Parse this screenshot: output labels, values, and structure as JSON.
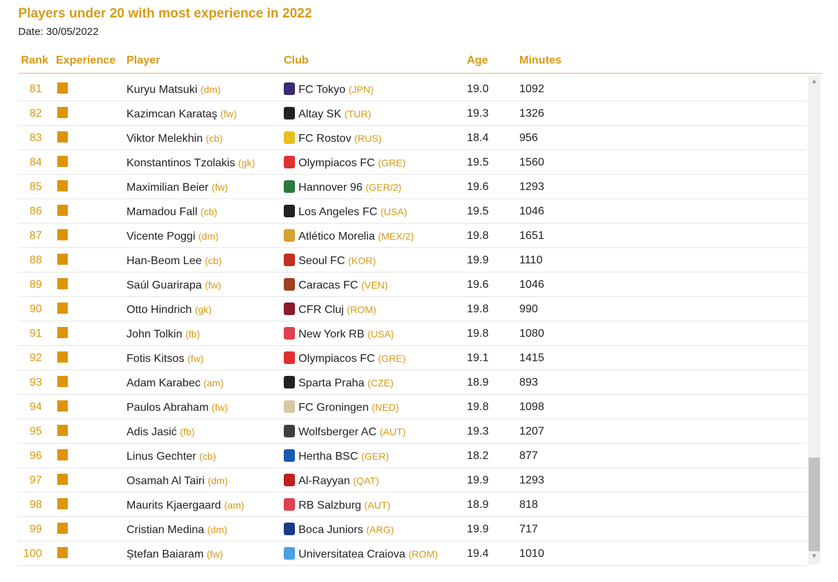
{
  "title": "Players under 20 with most experience in 2022",
  "date": "Date: 30/05/2022",
  "headers": {
    "rank": "Rank",
    "experience": "Experience",
    "player": "Player",
    "club": "Club",
    "age": "Age",
    "minutes": "Minutes"
  },
  "colors": {
    "accent": "#d89a16",
    "experience_bar": "#dd940b"
  },
  "rows": [
    {
      "rank": "81",
      "player": "Kuryu Matsuki",
      "pos": "(dm)",
      "club": "FC Tokyo",
      "country": "(JPN)",
      "age": "19.0",
      "minutes": "1092",
      "crest_color": "#3a2a7a"
    },
    {
      "rank": "82",
      "player": "Kazimcan Karataş",
      "pos": "(fw)",
      "club": "Altay SK",
      "country": "(TUR)",
      "age": "19.3",
      "minutes": "1326",
      "crest_color": "#222222"
    },
    {
      "rank": "83",
      "player": "Viktor Melekhin",
      "pos": "(cb)",
      "club": "FC Rostov",
      "country": "(RUS)",
      "age": "18.4",
      "minutes": "956",
      "crest_color": "#e8c020"
    },
    {
      "rank": "84",
      "player": "Konstantinos Tzolakis",
      "pos": "(gk)",
      "club": "Olympiacos FC",
      "country": "(GRE)",
      "age": "19.5",
      "minutes": "1560",
      "crest_color": "#e03030"
    },
    {
      "rank": "85",
      "player": "Maximilian Beier",
      "pos": "(fw)",
      "club": "Hannover 96",
      "country": "(GER/2)",
      "age": "19.6",
      "minutes": "1293",
      "crest_color": "#2a7a3a"
    },
    {
      "rank": "86",
      "player": "Mamadou Fall",
      "pos": "(cb)",
      "club": "Los Angeles FC",
      "country": "(USA)",
      "age": "19.5",
      "minutes": "1046",
      "crest_color": "#222222"
    },
    {
      "rank": "87",
      "player": "Vicente Poggi",
      "pos": "(dm)",
      "club": "Atlético Morelia",
      "country": "(MEX/2)",
      "age": "19.8",
      "minutes": "1651",
      "crest_color": "#d8a030"
    },
    {
      "rank": "88",
      "player": "Han-Beom Lee",
      "pos": "(cb)",
      "club": "Seoul FC",
      "country": "(KOR)",
      "age": "19.9",
      "minutes": "1110",
      "crest_color": "#c03020"
    },
    {
      "rank": "89",
      "player": "Saúl Guarirapa",
      "pos": "(fw)",
      "club": "Caracas FC",
      "country": "(VEN)",
      "age": "19.6",
      "minutes": "1046",
      "crest_color": "#a04020"
    },
    {
      "rank": "90",
      "player": "Otto Hindrich",
      "pos": "(gk)",
      "club": "CFR Cluj",
      "country": "(ROM)",
      "age": "19.8",
      "minutes": "990",
      "crest_color": "#8a1a2a"
    },
    {
      "rank": "91",
      "player": "John Tolkin",
      "pos": "(fb)",
      "club": "New York RB",
      "country": "(USA)",
      "age": "19.8",
      "minutes": "1080",
      "crest_color": "#e04050"
    },
    {
      "rank": "92",
      "player": "Fotis Kitsos",
      "pos": "(fw)",
      "club": "Olympiacos FC",
      "country": "(GRE)",
      "age": "19.1",
      "minutes": "1415",
      "crest_color": "#e03030"
    },
    {
      "rank": "93",
      "player": "Adam Karabec",
      "pos": "(am)",
      "club": "Sparta Praha",
      "country": "(CZE)",
      "age": "18.9",
      "minutes": "893",
      "crest_color": "#222222"
    },
    {
      "rank": "94",
      "player": "Paulos Abraham",
      "pos": "(fw)",
      "club": "FC Groningen",
      "country": "(NED)",
      "age": "19.8",
      "minutes": "1098",
      "crest_color": "#d8c8a0"
    },
    {
      "rank": "95",
      "player": "Adis Jasić",
      "pos": "(fb)",
      "club": "Wolfsberger AC",
      "country": "(AUT)",
      "age": "19.3",
      "minutes": "1207",
      "crest_color": "#404040"
    },
    {
      "rank": "96",
      "player": "Linus Gechter",
      "pos": "(cb)",
      "club": "Hertha BSC",
      "country": "(GER)",
      "age": "18.2",
      "minutes": "877",
      "crest_color": "#1a5ab0"
    },
    {
      "rank": "97",
      "player": "Osamah Al Tairi",
      "pos": "(dm)",
      "club": "Al-Rayyan",
      "country": "(QAT)",
      "age": "19.9",
      "minutes": "1293",
      "crest_color": "#c02020"
    },
    {
      "rank": "98",
      "player": "Maurits Kjaergaard",
      "pos": "(am)",
      "club": "RB Salzburg",
      "country": "(AUT)",
      "age": "18.9",
      "minutes": "818",
      "crest_color": "#e04050"
    },
    {
      "rank": "99",
      "player": "Cristian Medina",
      "pos": "(dm)",
      "club": "Boca Juniors",
      "country": "(ARG)",
      "age": "19.9",
      "minutes": "717",
      "crest_color": "#1a3a8a"
    },
    {
      "rank": "100",
      "player": "Ștefan Baiaram",
      "pos": "(fw)",
      "club": "Universitatea Craiova",
      "country": "(ROM)",
      "age": "19.4",
      "minutes": "1010",
      "crest_color": "#4aa0e0"
    }
  ]
}
